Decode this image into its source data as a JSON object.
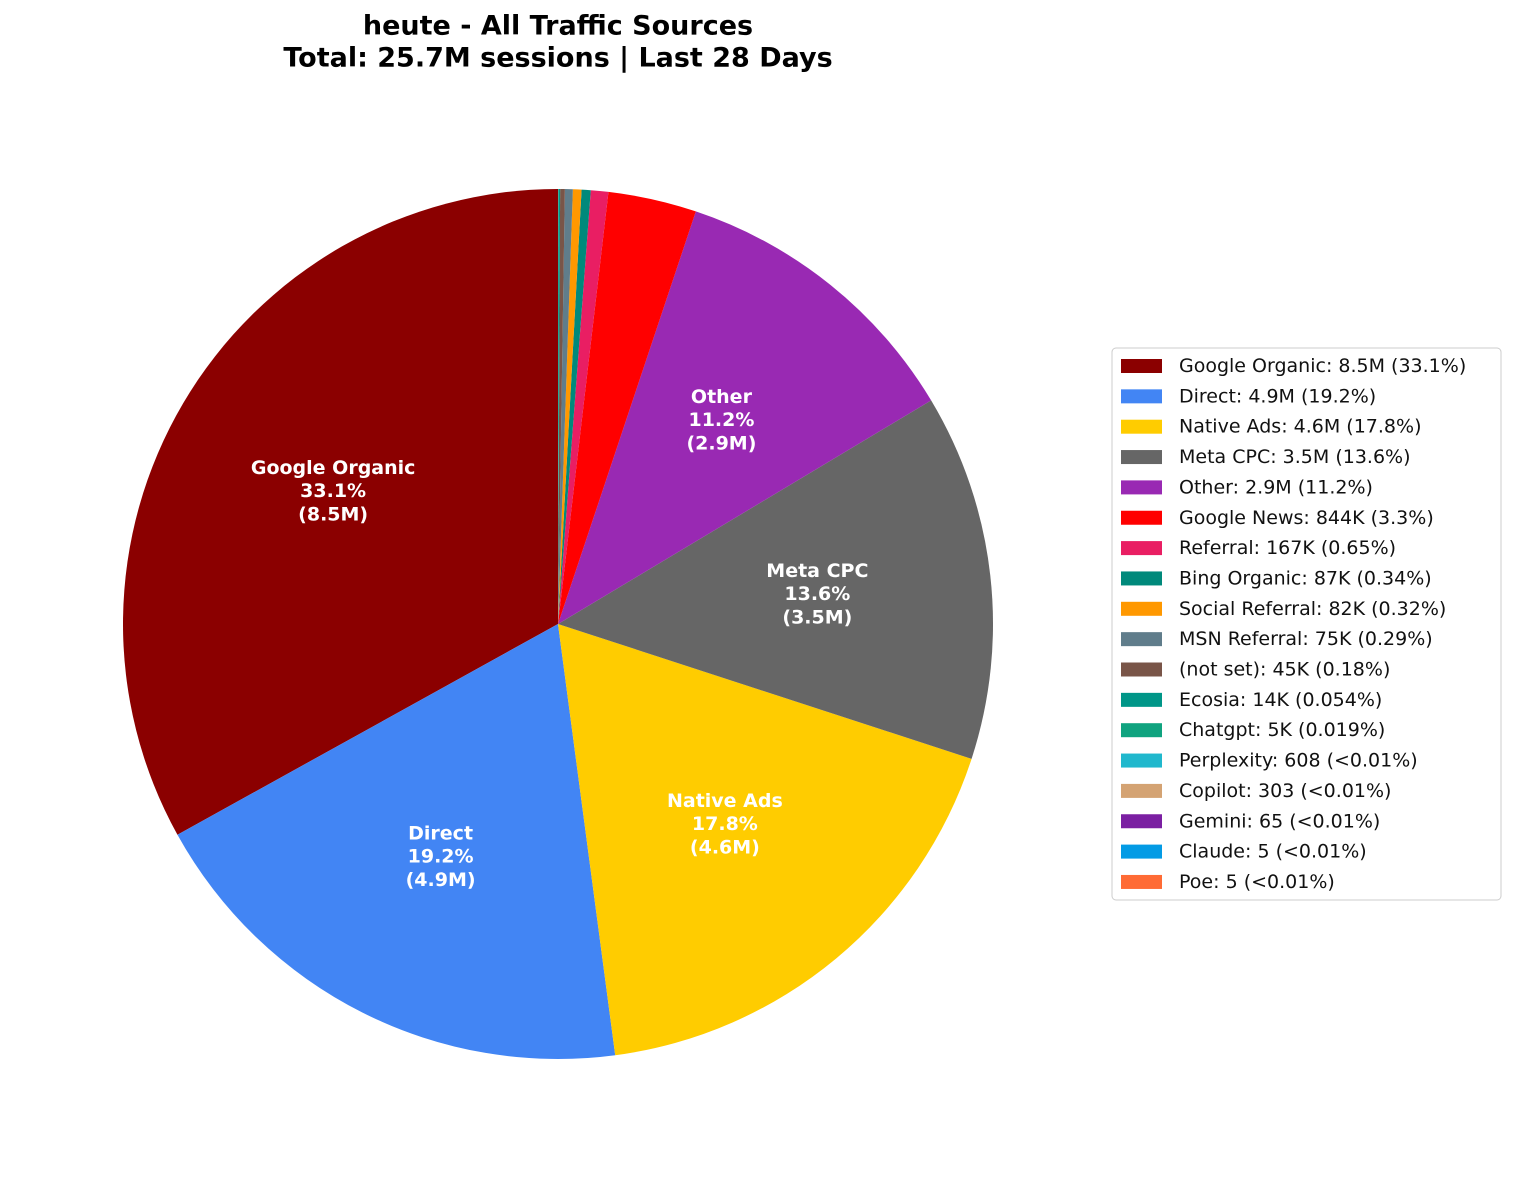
{
  "chart_data": {
    "type": "pie",
    "title": "heute - All Traffic Sources",
    "subtitle": "Total: 25.7M sessions | Last 28 Days",
    "categories": [
      "Google Organic",
      "Direct",
      "Native Ads",
      "Meta CPC",
      "Other",
      "Google News",
      "Referral",
      "Bing Organic",
      "Social Referral",
      "MSN Referral",
      "(not set)",
      "Ecosia",
      "Chatgpt",
      "Perplexity",
      "Copilot",
      "Gemini",
      "Claude",
      "Poe"
    ],
    "values": [
      8500000,
      4900000,
      4600000,
      3500000,
      2900000,
      844000,
      167000,
      87000,
      82000,
      75000,
      45000,
      14000,
      5000,
      608,
      303,
      65,
      5,
      5
    ],
    "value_labels": [
      "8.5M",
      "4.9M",
      "4.6M",
      "3.5M",
      "2.9M",
      "844K",
      "167K",
      "87K",
      "82K",
      "75K",
      "45K",
      "14K",
      "5K",
      "608",
      "303",
      "65",
      "5",
      "5"
    ],
    "percents": [
      33.1,
      19.2,
      17.8,
      13.6,
      11.2,
      3.3,
      0.65,
      0.34,
      0.32,
      0.29,
      0.18,
      0.054,
      0.019,
      0.0024,
      0.0012,
      0.0003,
      2e-05,
      2e-05
    ],
    "percent_labels": [
      "33.1%",
      "19.2%",
      "17.8%",
      "13.6%",
      "11.2%",
      "3.3%",
      "0.65%",
      "0.34%",
      "0.32%",
      "0.29%",
      "0.18%",
      "0.054%",
      "0.019%",
      "<0.01%",
      "<0.01%",
      "<0.01%",
      "<0.01%",
      "<0.01%"
    ],
    "colors": [
      "#8b0000",
      "#4285f4",
      "#ffcc00",
      "#666666",
      "#9929b3",
      "#ff0000",
      "#e91e63",
      "#00897b",
      "#ff9800",
      "#607d8b",
      "#795548",
      "#009688",
      "#10a37f",
      "#20b8cd",
      "#d4a373",
      "#7b1fa2",
      "#039be5",
      "#ff6b35"
    ],
    "legend": "right"
  }
}
